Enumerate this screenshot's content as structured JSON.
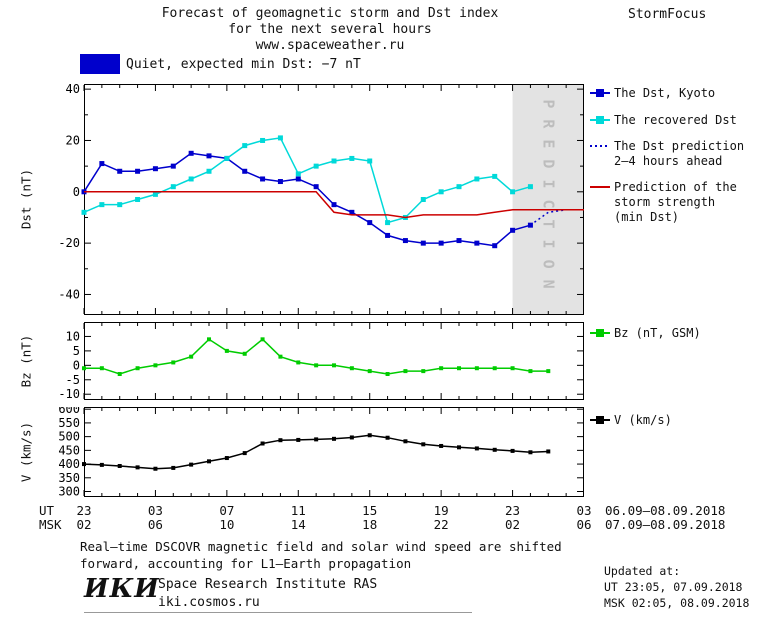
{
  "header": {
    "title_line1": "Forecast of geomagnetic storm and Dst index",
    "title_line2": "for the next several hours",
    "title_line3": "www.spaceweather.ru",
    "brand": "StormFocus"
  },
  "status": {
    "label": "Quiet, expected min Dst: −7 nT",
    "color": "#0000cc"
  },
  "axis": {
    "ut_label": "UT",
    "msk_label": "MSK",
    "ut_dates": "06.09—08.09.2018",
    "msk_dates": "07.09—08.09.2018"
  },
  "legend": {
    "dst_kyoto": "The Dst, Kyoto",
    "recovered": "The recovered Dst",
    "prediction": "The Dst prediction\n2—4 hours ahead",
    "storm_strength": "Prediction of the\nstorm strength\n(min Dst)",
    "bz": "Bz (nT, GSM)",
    "v": "V (km/s)"
  },
  "footnote": {
    "line1": "Real—time DSCOVR magnetic field and solar wind speed are shifted",
    "line2": "forward, accounting for L1—Earth propagation"
  },
  "footer": {
    "logo": "ИКИ",
    "institute": "Space Research Institute RAS",
    "site": "iki.cosmos.ru",
    "updated_label": "Updated at:",
    "updated_ut": "UT  23:05, 07.09.2018",
    "updated_msk": "MSK 02:05, 08.09.2018"
  },
  "chart_data": [
    {
      "type": "line",
      "title": "Dst index observed, recovered and predicted",
      "ylabel": "Dst (nT)",
      "ylim": [
        -48,
        42
      ],
      "yticks": [
        -40,
        -20,
        0,
        20,
        40
      ],
      "yminor": [
        -30,
        -10,
        10,
        30
      ],
      "xlim": [
        0,
        28
      ],
      "xtick_hours": [
        0,
        4,
        8,
        12,
        16,
        20,
        24,
        28
      ],
      "xticks_ut": [
        "23",
        "03",
        "07",
        "11",
        "15",
        "19",
        "23",
        "03"
      ],
      "xticks_msk": [
        "02",
        "06",
        "10",
        "14",
        "18",
        "22",
        "02",
        "06"
      ],
      "prediction_band": {
        "from": 24,
        "to": 28,
        "label": "PREDICTION",
        "fill": "#e3e3e3",
        "text_color": "#bdbdbd"
      },
      "series": [
        {
          "name": "The Dst, Kyoto",
          "color": "#0000cc",
          "marker": "square",
          "marker_size": 5,
          "x": [
            0,
            1,
            2,
            3,
            4,
            5,
            6,
            7,
            8,
            9,
            10,
            11,
            12,
            13,
            14,
            15,
            16,
            17,
            18,
            19,
            20,
            21,
            22,
            23,
            24,
            25
          ],
          "values": [
            0,
            11,
            8,
            8,
            9,
            10,
            15,
            14,
            13,
            8,
            5,
            4,
            5,
            2,
            -5,
            -8,
            -12,
            -17,
            -19,
            -20,
            -20,
            -19,
            -20,
            -21,
            -15,
            -13
          ]
        },
        {
          "name": "The recovered Dst",
          "color": "#00d9d9",
          "marker": "square",
          "marker_size": 5,
          "x": [
            0,
            1,
            2,
            3,
            4,
            5,
            6,
            7,
            8,
            9,
            10,
            11,
            12,
            13,
            14,
            15,
            16,
            17,
            18,
            19,
            20,
            21,
            22,
            23,
            24,
            25
          ],
          "values": [
            -8,
            -5,
            -5,
            -3,
            -1,
            2,
            5,
            8,
            13,
            18,
            20,
            21,
            7,
            10,
            12,
            13,
            12,
            -12,
            -10,
            -3,
            0,
            2,
            5,
            6,
            0,
            2
          ]
        },
        {
          "name": "The Dst prediction 2—4 hours ahead",
          "color": "#0000cc",
          "dash": true,
          "x": [
            25,
            26,
            27,
            28
          ],
          "values": [
            -13,
            -8,
            -7,
            -7
          ]
        },
        {
          "name": "Prediction of the storm strength (min Dst)",
          "color": "#cc0000",
          "x": [
            0,
            1,
            2,
            3,
            4,
            5,
            6,
            7,
            8,
            9,
            10,
            11,
            12,
            13,
            14,
            15,
            16,
            17,
            18,
            19,
            20,
            21,
            22,
            23,
            24,
            25,
            26,
            27,
            28
          ],
          "values": [
            0,
            0,
            0,
            0,
            0,
            0,
            0,
            0,
            0,
            0,
            0,
            0,
            0,
            0,
            -8,
            -9,
            -9,
            -9,
            -10,
            -9,
            -9,
            -9,
            -9,
            -8,
            -7,
            -7,
            -7,
            -7,
            -7
          ]
        }
      ]
    },
    {
      "type": "line",
      "title": "Interplanetary magnetic field Bz",
      "ylabel": "Bz (nT)",
      "ylim": [
        -12,
        15
      ],
      "yticks": [
        -10,
        -5,
        0,
        5,
        10
      ],
      "xlim": [
        0,
        28
      ],
      "xtick_hours": [
        0,
        4,
        8,
        12,
        16,
        20,
        24,
        28
      ],
      "series": [
        {
          "name": "Bz (nT, GSM)",
          "color": "#00cc00",
          "marker": "square",
          "marker_size": 4,
          "x": [
            0,
            1,
            2,
            3,
            4,
            5,
            6,
            7,
            8,
            9,
            10,
            11,
            12,
            13,
            14,
            15,
            16,
            17,
            18,
            19,
            20,
            21,
            22,
            23,
            24,
            25,
            26
          ],
          "values": [
            -1,
            -1,
            -3,
            -1,
            0,
            1,
            3,
            9,
            5,
            4,
            9,
            3,
            1,
            0,
            0,
            -1,
            -2,
            -3,
            -2,
            -2,
            -1,
            -1,
            -1,
            -1,
            -1,
            -2,
            -2
          ]
        }
      ]
    },
    {
      "type": "line",
      "title": "Solar wind speed",
      "ylabel": "V (km/s)",
      "ylim": [
        280,
        608
      ],
      "yticks": [
        300,
        350,
        400,
        450,
        500,
        550,
        600
      ],
      "xlim": [
        0,
        28
      ],
      "xtick_hours": [
        0,
        4,
        8,
        12,
        16,
        20,
        24,
        28
      ],
      "series": [
        {
          "name": "V (km/s)",
          "color": "#000000",
          "marker": "square",
          "marker_size": 4,
          "x": [
            0,
            1,
            2,
            3,
            4,
            5,
            6,
            7,
            8,
            9,
            10,
            11,
            12,
            13,
            14,
            15,
            16,
            17,
            18,
            19,
            20,
            21,
            22,
            23,
            24,
            25,
            26
          ],
          "values": [
            400,
            397,
            393,
            388,
            383,
            386,
            398,
            410,
            422,
            440,
            475,
            487,
            488,
            490,
            492,
            497,
            505,
            496,
            483,
            472,
            466,
            461,
            457,
            452,
            448,
            443,
            446
          ]
        }
      ]
    }
  ]
}
